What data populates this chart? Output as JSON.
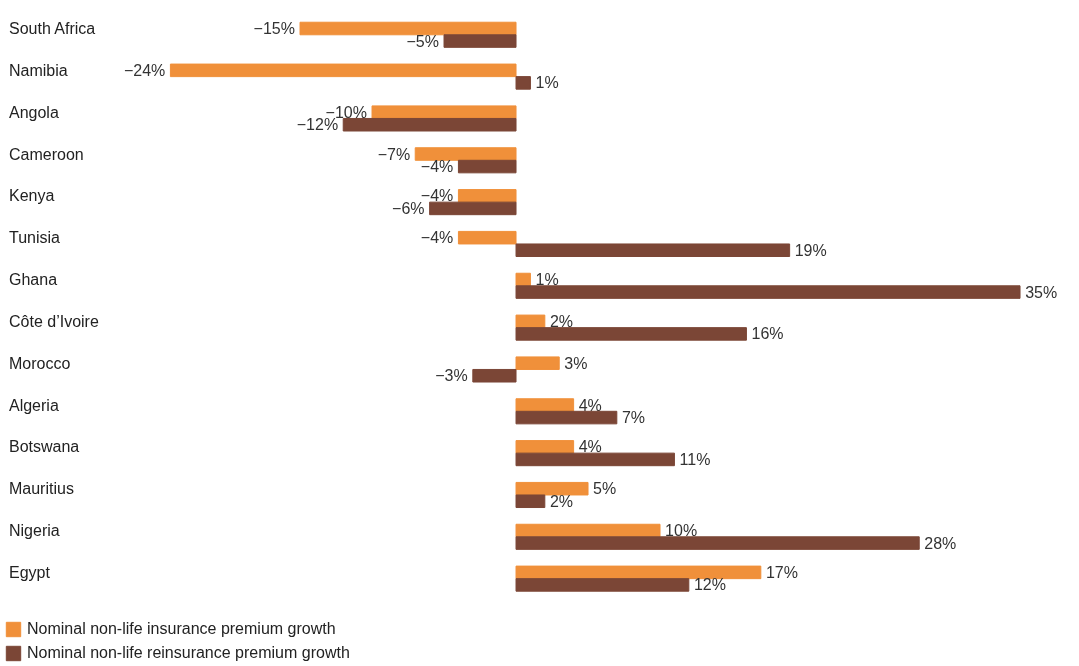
{
  "chart_data": {
    "type": "bar",
    "orientation": "horizontal",
    "tick_labels": "y",
    "legend": "bottom left",
    "categories": [
      "South Africa",
      "Namibia",
      "Angola",
      "Cameroon",
      "Kenya",
      "Tunisia",
      "Ghana",
      "Côte d’Ivoire",
      "Morocco",
      "Algeria",
      "Botswana",
      "Mauritius",
      "Nigeria",
      "Egypt"
    ],
    "series": [
      {
        "name": "Nominal non-life insurance premium growth",
        "color": "#f0903a",
        "values": [
          -15,
          -24,
          -10,
          -7,
          -4,
          -4,
          1,
          2,
          3,
          4,
          4,
          5,
          10,
          17
        ],
        "value_labels": [
          "−15%",
          "−24%",
          "−10%",
          "−7%",
          "−4%",
          "−4%",
          "1%",
          "2%",
          "3%",
          "4%",
          "4%",
          "5%",
          "10%",
          "17%"
        ]
      },
      {
        "name": "Nominal non-life reinsurance premium growth",
        "color": "#7b4636",
        "values": [
          -5,
          1,
          -12,
          -4,
          -6,
          19,
          35,
          16,
          -3,
          7,
          11,
          2,
          28,
          12
        ],
        "value_labels": [
          "−5%",
          "1%",
          "−12%",
          "−4%",
          "−6%",
          "19%",
          "35%",
          "16%",
          "−3%",
          "7%",
          "11%",
          "2%",
          "28%",
          "12%"
        ]
      }
    ]
  }
}
